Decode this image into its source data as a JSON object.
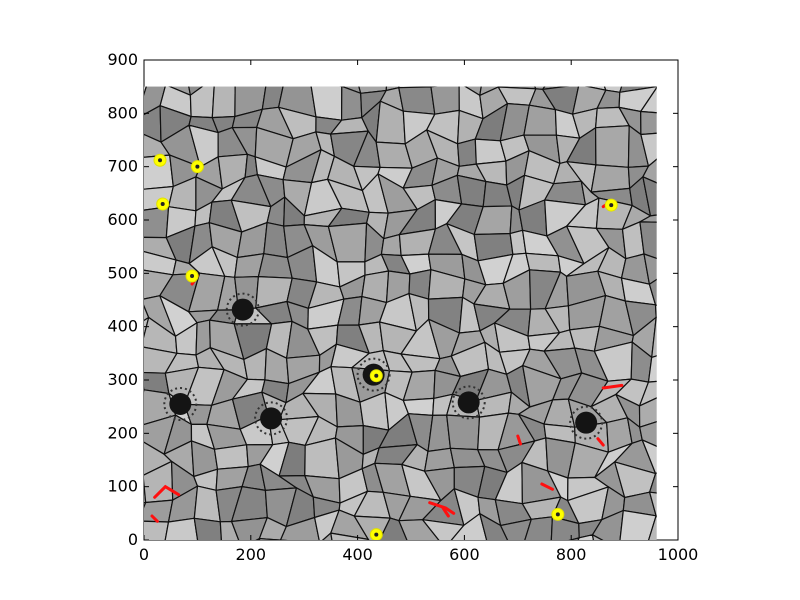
{
  "figure": {
    "background": "#ffffff",
    "axes": {
      "xlim": [
        0,
        1000
      ],
      "ylim": [
        0,
        900
      ],
      "xticks": [
        "0",
        "200",
        "400",
        "600",
        "800",
        "1000"
      ],
      "yticks": [
        "0",
        "100",
        "200",
        "300",
        "400",
        "500",
        "600",
        "700",
        "800",
        "900"
      ],
      "grid": false
    },
    "image": {
      "description_kind": "grayscale micrograph of polycrystalline grains with black grain boundaries",
      "extent_x": [
        0,
        960
      ],
      "extent_y": [
        0,
        850
      ],
      "pores": [
        {
          "x": 68,
          "y": 255
        },
        {
          "x": 238,
          "y": 228
        },
        {
          "x": 185,
          "y": 432
        },
        {
          "x": 608,
          "y": 258
        },
        {
          "x": 828,
          "y": 220
        },
        {
          "x": 430,
          "y": 310
        }
      ],
      "yellow_markers": [
        {
          "x": 30,
          "y": 712
        },
        {
          "x": 100,
          "y": 700
        },
        {
          "x": 35,
          "y": 630
        },
        {
          "x": 90,
          "y": 495
        },
        {
          "x": 435,
          "y": 308
        },
        {
          "x": 875,
          "y": 628
        },
        {
          "x": 775,
          "y": 48
        },
        {
          "x": 435,
          "y": 10
        }
      ],
      "red_segments": [
        {
          "points": [
            [
              20,
              80
            ],
            [
              40,
              100
            ],
            [
              65,
              85
            ]
          ]
        },
        {
          "points": [
            [
              15,
              45
            ],
            [
              25,
              35
            ]
          ]
        },
        {
          "points": [
            [
              535,
              70
            ],
            [
              565,
              60
            ],
            [
              580,
              50
            ]
          ]
        },
        {
          "points": [
            [
              560,
              60
            ],
            [
              570,
              45
            ]
          ]
        },
        {
          "points": [
            [
              700,
              195
            ],
            [
              705,
              180
            ]
          ]
        },
        {
          "points": [
            [
              745,
              105
            ],
            [
              765,
              95
            ]
          ]
        },
        {
          "points": [
            [
              850,
              190
            ],
            [
              860,
              178
            ]
          ]
        },
        {
          "points": [
            [
              860,
              285
            ],
            [
              895,
              290
            ]
          ]
        },
        {
          "points": [
            [
              860,
              625
            ],
            [
              875,
              635
            ]
          ]
        },
        {
          "points": [
            [
              90,
              480
            ],
            [
              100,
              495
            ]
          ]
        }
      ]
    }
  }
}
